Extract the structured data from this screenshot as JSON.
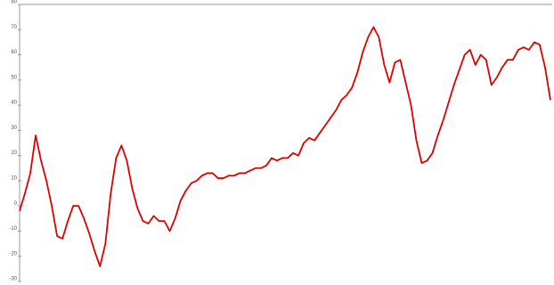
{
  "chart_data": {
    "type": "line",
    "color": "#e00000",
    "values": [
      -2,
      5,
      13,
      28,
      18,
      10,
      0,
      -12,
      -13,
      -6,
      0,
      0,
      -5,
      -11,
      -18,
      -24,
      -15,
      5,
      19,
      24,
      18,
      7,
      -1,
      -6,
      -7,
      -4,
      -6,
      -6,
      -10,
      -5,
      2,
      6,
      9,
      10,
      12,
      13,
      13,
      11,
      11,
      12,
      12,
      13,
      13,
      14,
      15,
      15,
      16,
      19,
      18,
      19,
      19,
      21,
      20,
      25,
      27,
      26,
      29,
      32,
      35,
      38,
      42,
      44,
      47,
      53,
      61,
      67,
      71,
      67,
      56,
      49,
      57,
      58,
      49,
      40,
      26,
      17,
      18,
      21,
      28,
      34,
      41,
      48,
      54,
      60,
      62,
      56,
      60,
      58,
      48,
      51,
      55,
      58,
      58,
      62,
      63,
      62,
      65,
      64,
      55,
      42
    ],
    "ylim": [
      -30,
      80
    ],
    "yticks": [
      -30,
      -20,
      -10,
      0,
      10,
      20,
      30,
      40,
      50,
      60,
      70,
      80
    ]
  }
}
